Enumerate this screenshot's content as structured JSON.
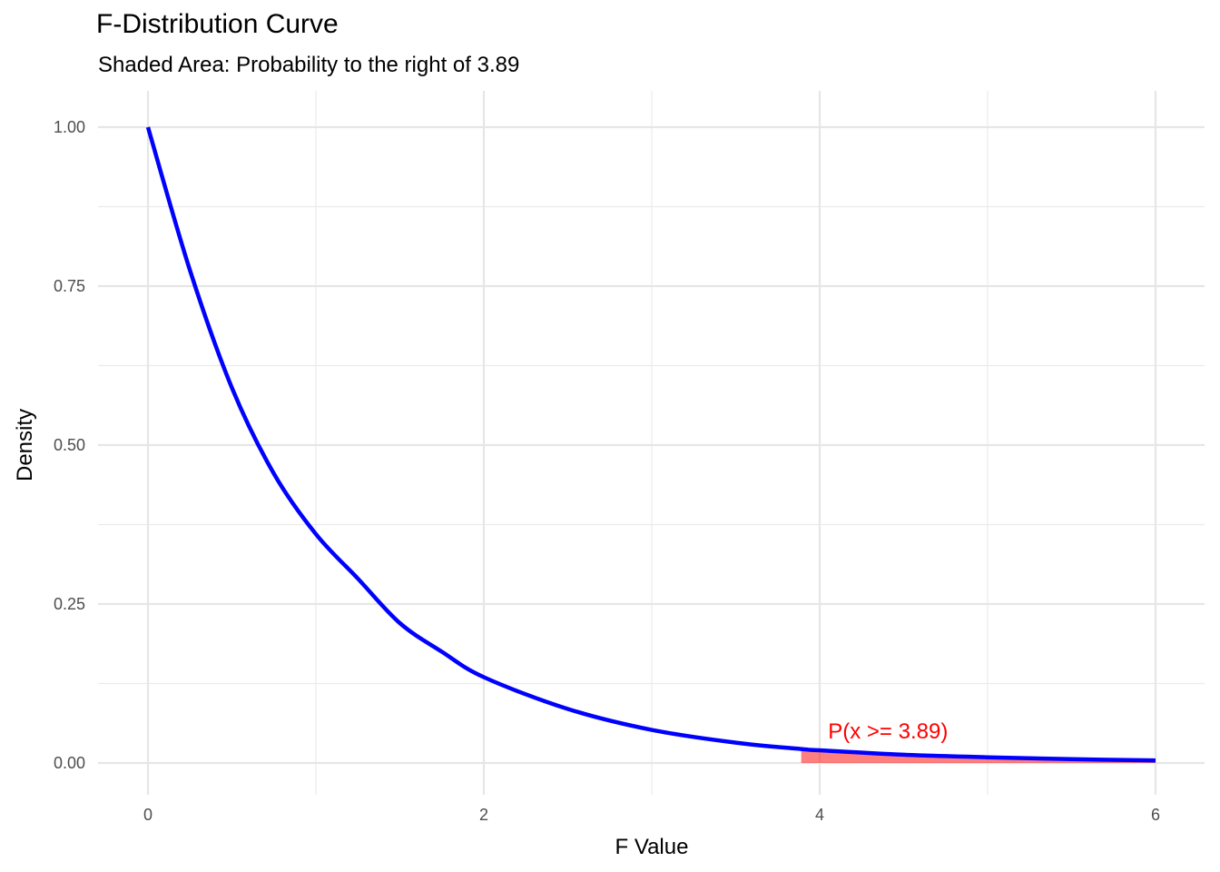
{
  "chart_data": {
    "type": "area",
    "title": "F-Distribution Curve",
    "subtitle": "Shaded Area: Probability to the right of 3.89",
    "xlabel": "F Value",
    "ylabel": "Density",
    "xlim": [
      0,
      6
    ],
    "ylim": [
      0,
      1
    ],
    "x_ticks": [
      0,
      2,
      4,
      6
    ],
    "x_tick_labels": [
      "0",
      "2",
      "4",
      "6"
    ],
    "y_ticks": [
      0,
      0.25,
      0.5,
      0.75,
      1
    ],
    "y_tick_labels": [
      "0.00",
      "0.25",
      "0.50",
      "0.75",
      "1.00"
    ],
    "grid": true,
    "curve": {
      "x": [
        0,
        0.25,
        0.5,
        0.75,
        1,
        1.25,
        1.5,
        1.75,
        2,
        2.5,
        3,
        3.5,
        3.89,
        4,
        4.5,
        5,
        5.5,
        6
      ],
      "y": [
        1.0,
        0.775,
        0.59,
        0.455,
        0.36,
        0.29,
        0.22,
        0.175,
        0.135,
        0.085,
        0.052,
        0.032,
        0.022,
        0.02,
        0.013,
        0.009,
        0.006,
        0.004
      ],
      "color": "#0000ff"
    },
    "shaded_region": {
      "x_from": 3.89,
      "x_to": 6,
      "color": "#ff0000",
      "opacity": 0.5
    },
    "annotation": {
      "text": "P(x >= 3.89)",
      "x": 4.05,
      "y": 0.05,
      "color": "#ff0000"
    }
  }
}
